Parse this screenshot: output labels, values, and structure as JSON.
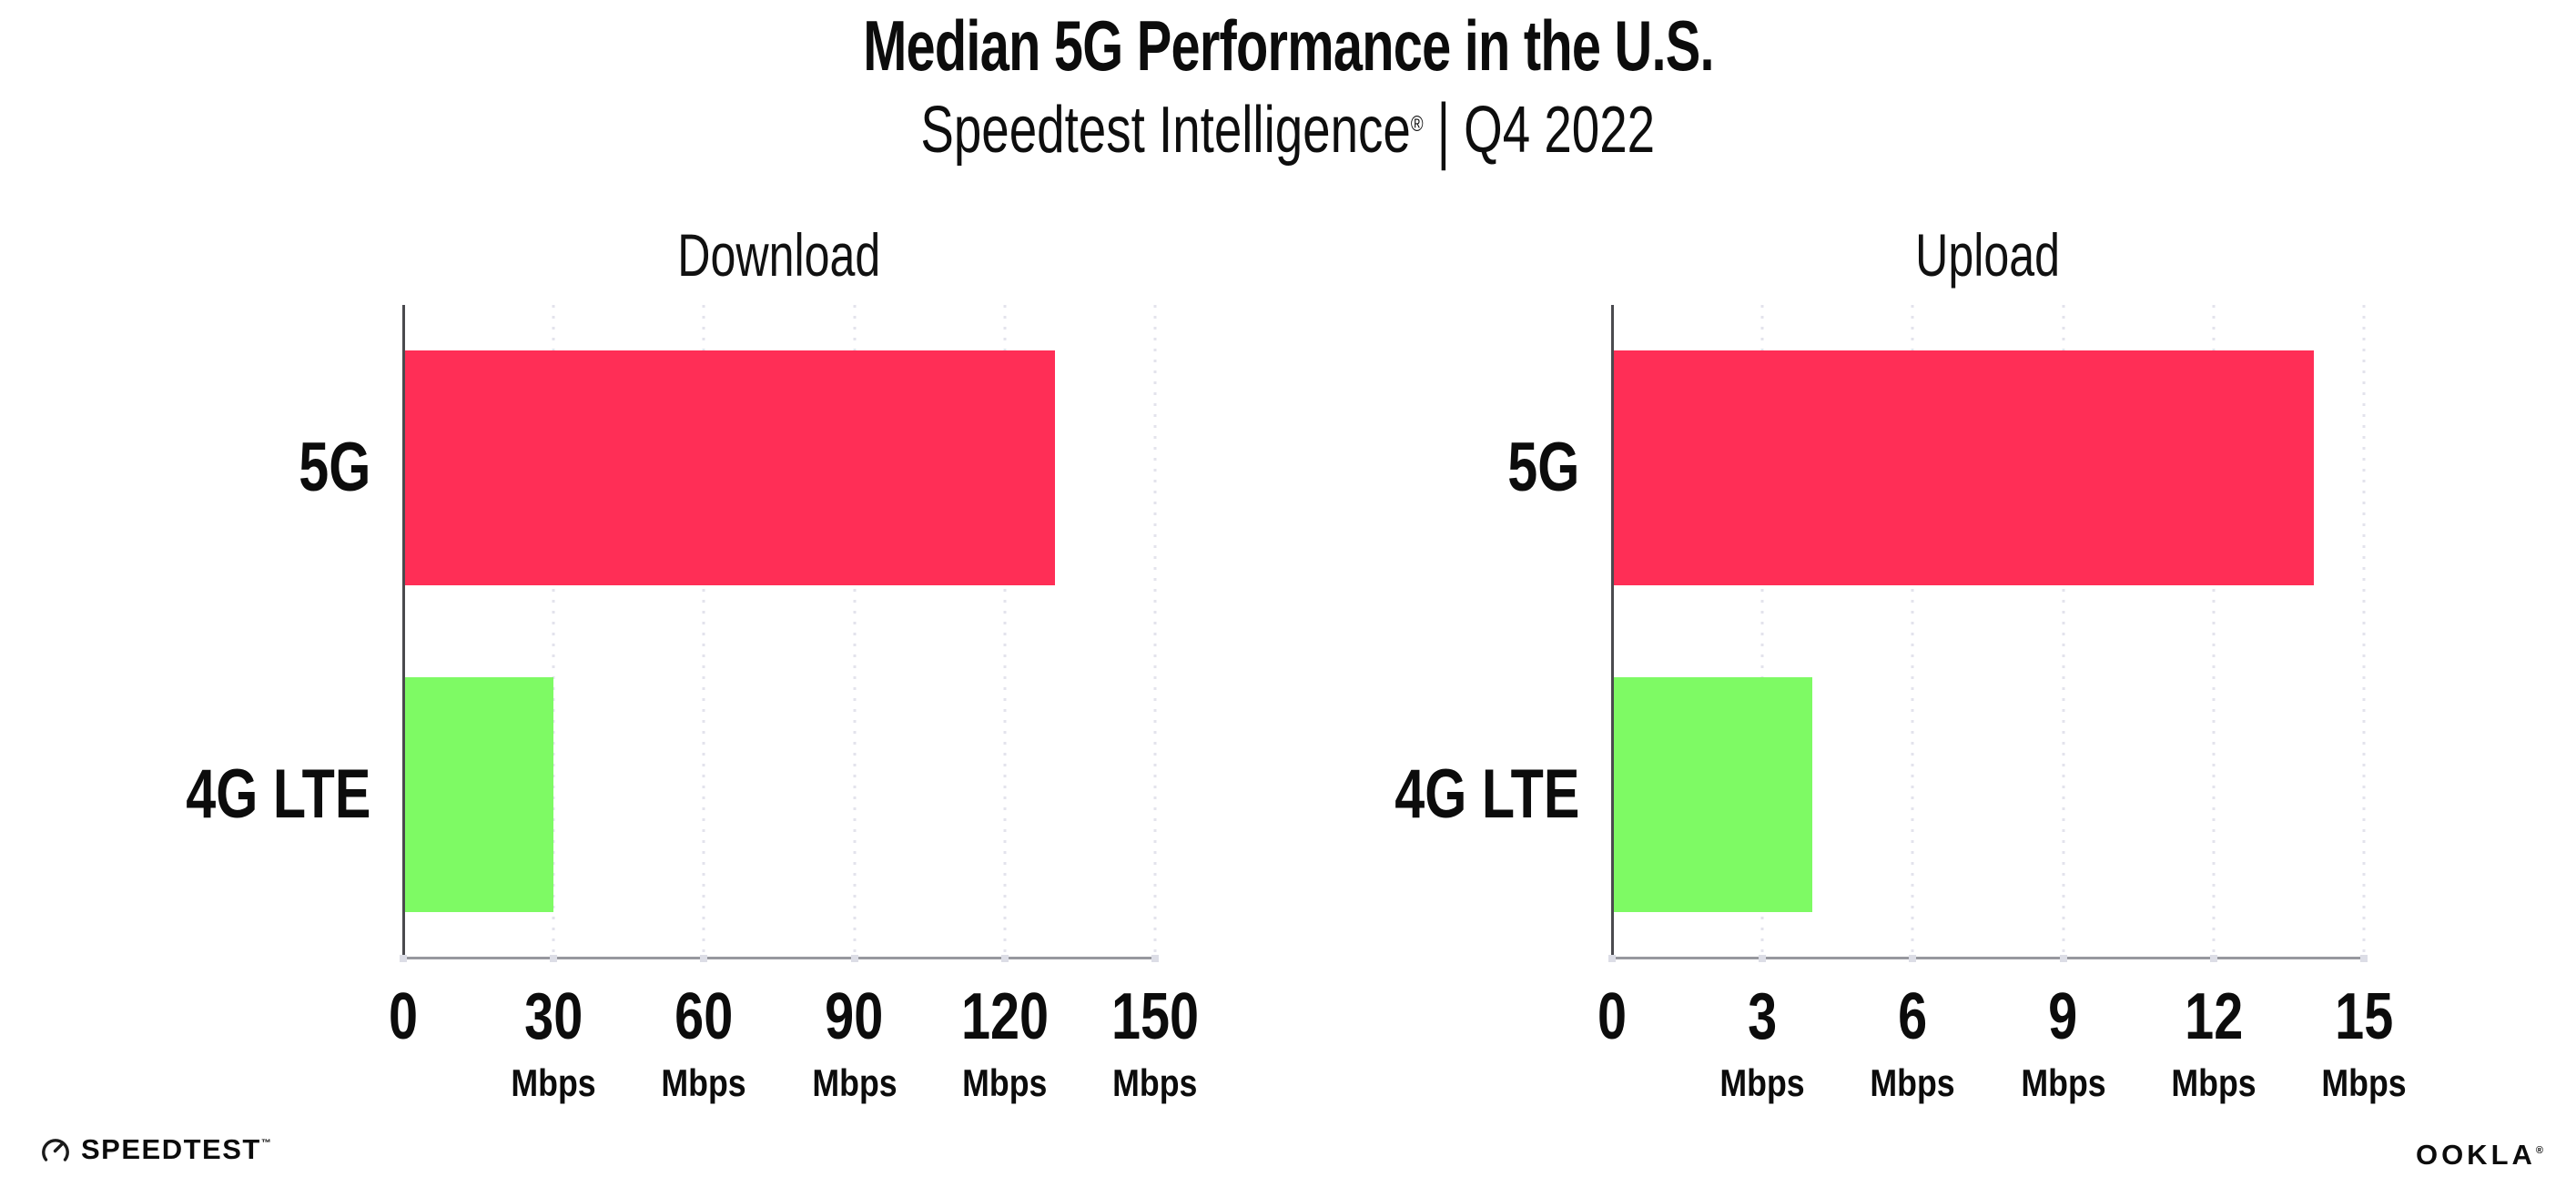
{
  "header": {
    "title": "Median 5G Performance in the U.S.",
    "subtitle_brand": "Speedtest Intelligence",
    "subtitle_reg": "®",
    "subtitle_sep": "|",
    "subtitle_period": "Q4 2022"
  },
  "footer": {
    "speedtest_label": "SPEEDTEST",
    "speedtest_mark": "™",
    "ookla_label": "OOKLA",
    "ookla_mark": "®"
  },
  "colors": {
    "bar_5g": "#FF2E56",
    "bar_4g_lte": "#7EFA64",
    "gridline": "#E3E3EC",
    "x_axis": "#97989E",
    "y_axis": "#4A4A4E",
    "text": "#0C0C0C"
  },
  "chart_data": [
    {
      "type": "bar",
      "orientation": "horizontal",
      "title": "Download",
      "categories": [
        "5G",
        "4G LTE"
      ],
      "values": [
        130,
        30
      ],
      "bar_colors": [
        "#FF2E56",
        "#7EFA64"
      ],
      "unit": "Mbps",
      "xlim": [
        0,
        150
      ],
      "xticks": [
        0,
        30,
        60,
        90,
        120,
        150
      ],
      "grid": "vertical-dotted",
      "legend": "none"
    },
    {
      "type": "bar",
      "orientation": "horizontal",
      "title": "Upload",
      "categories": [
        "5G",
        "4G LTE"
      ],
      "values": [
        14,
        4
      ],
      "bar_colors": [
        "#FF2E56",
        "#7EFA64"
      ],
      "unit": "Mbps",
      "xlim": [
        0,
        15
      ],
      "xticks": [
        0,
        3,
        6,
        9,
        12,
        15
      ],
      "grid": "vertical-dotted",
      "legend": "none"
    }
  ]
}
